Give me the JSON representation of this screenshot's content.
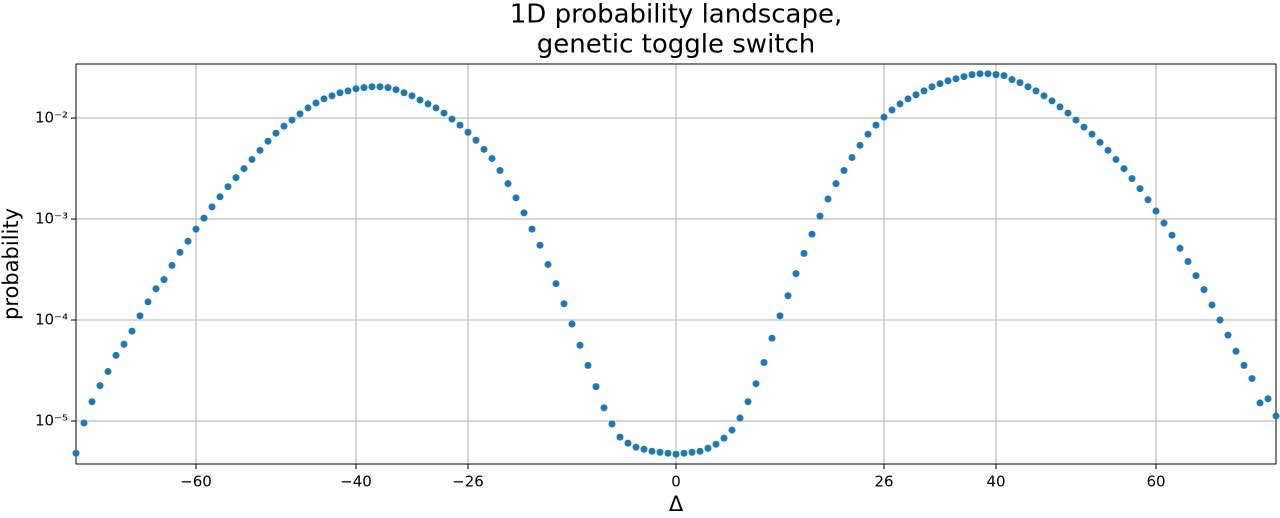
{
  "chart_data": {
    "type": "scatter",
    "title": [
      "1D probability landscape,",
      "genetic toggle switch"
    ],
    "xlabel": "Δ",
    "ylabel": "probability",
    "log_y": true,
    "grid": true,
    "xlim": [
      -75,
      75
    ],
    "ylim": [
      3.75e-06,
      0.0343
    ],
    "xticks": [
      {
        "value": -60,
        "label": "−60"
      },
      {
        "value": -40,
        "label": "−40"
      },
      {
        "value": -26,
        "label": "−26"
      },
      0,
      26,
      40,
      60
    ],
    "yticks": [
      {
        "value": 1e-05,
        "label": "10⁻⁵"
      },
      {
        "value": 0.0001,
        "label": "10⁻⁴"
      },
      {
        "value": 0.001,
        "label": "10⁻³"
      },
      {
        "value": 0.01,
        "label": "10⁻²"
      }
    ],
    "series": [
      {
        "color": "#1f77b4",
        "x": [
          -75,
          -74,
          -73,
          -72,
          -71,
          -70,
          -69,
          -68,
          -67,
          -66,
          -65,
          -64,
          -63,
          -62,
          -61,
          -60,
          -59,
          -58,
          -57,
          -56,
          -55,
          -54,
          -53,
          -52,
          -51,
          -50,
          -49,
          -48,
          -47,
          -46,
          -45,
          -44,
          -43,
          -42,
          -41,
          -40,
          -39,
          -38,
          -37,
          -36,
          -35,
          -34,
          -33,
          -32,
          -31,
          -30,
          -29,
          -28,
          -27,
          -26,
          -25,
          -24,
          -23,
          -22,
          -21,
          -20,
          -19,
          -18,
          -17,
          -16,
          -15,
          -14,
          -13,
          -12,
          -11,
          -10,
          -9,
          -8,
          -7,
          -6,
          -5,
          -4,
          -3,
          -2,
          -1,
          0,
          1,
          2,
          3,
          4,
          5,
          6,
          7,
          8,
          9,
          10,
          11,
          12,
          13,
          14,
          15,
          16,
          17,
          18,
          19,
          20,
          21,
          22,
          23,
          24,
          25,
          26,
          27,
          28,
          29,
          30,
          31,
          32,
          33,
          34,
          35,
          36,
          37,
          38,
          39,
          40,
          41,
          42,
          43,
          44,
          45,
          46,
          47,
          48,
          49,
          50,
          51,
          52,
          53,
          54,
          55,
          56,
          57,
          58,
          59,
          60,
          61,
          62,
          63,
          64,
          65,
          66,
          67,
          68,
          69,
          70,
          71,
          72,
          73,
          74,
          75
        ],
        "values": [
          4.79e-06,
          9.55e-06,
          1.55e-05,
          2.24e-05,
          3.09e-05,
          4.47e-05,
          5.75e-05,
          7.76e-05,
          0.00011,
          0.000151,
          0.000204,
          0.000251,
          0.000347,
          0.000468,
          0.000603,
          0.000794,
          0.00102,
          0.00132,
          0.00166,
          0.00209,
          0.00257,
          0.00316,
          0.00389,
          0.00479,
          0.00589,
          0.00708,
          0.00832,
          0.00955,
          0.011,
          0.0126,
          0.0141,
          0.0155,
          0.0166,
          0.0178,
          0.0186,
          0.0195,
          0.02,
          0.0204,
          0.0204,
          0.02,
          0.0191,
          0.0178,
          0.0166,
          0.0151,
          0.0138,
          0.0126,
          0.0112,
          0.00977,
          0.00851,
          0.00724,
          0.00603,
          0.0049,
          0.00398,
          0.00302,
          0.00224,
          0.00162,
          0.00115,
          0.000794,
          0.00055,
          0.000355,
          0.000229,
          0.000145,
          9.12e-05,
          5.62e-05,
          3.55e-05,
          2.19e-05,
          1.35e-05,
          9.33e-06,
          6.92e-06,
          6.03e-06,
          5.5e-06,
          5.25e-06,
          5.01e-06,
          4.9e-06,
          4.79e-06,
          4.68e-06,
          4.79e-06,
          4.9e-06,
          5.01e-06,
          5.37e-06,
          5.89e-06,
          6.76e-06,
          8.13e-06,
          1.07e-05,
          1.55e-05,
          2.34e-05,
          3.8e-05,
          6.61e-05,
          0.00011,
          0.000174,
          0.000288,
          0.000457,
          0.000708,
          0.00107,
          0.00158,
          0.00224,
          0.00302,
          0.00407,
          0.00537,
          0.00692,
          0.00851,
          0.0102,
          0.012,
          0.0138,
          0.0155,
          0.017,
          0.0186,
          0.0204,
          0.0219,
          0.0234,
          0.0245,
          0.0257,
          0.0269,
          0.0275,
          0.0275,
          0.0269,
          0.0263,
          0.024,
          0.0224,
          0.0204,
          0.0186,
          0.0166,
          0.0148,
          0.0129,
          0.0112,
          0.00955,
          0.00813,
          0.00692,
          0.00575,
          0.00479,
          0.00389,
          0.00316,
          0.00251,
          0.002,
          0.00155,
          0.0012,
          0.000912,
          0.000692,
          0.000513,
          0.00038,
          0.000275,
          0.0002,
          0.000141,
          0.0001,
          7.08e-05,
          4.9e-05,
          3.55e-05,
          2.63e-05,
          1.51e-05,
          1.66e-05,
          1.12e-05
        ]
      }
    ]
  }
}
